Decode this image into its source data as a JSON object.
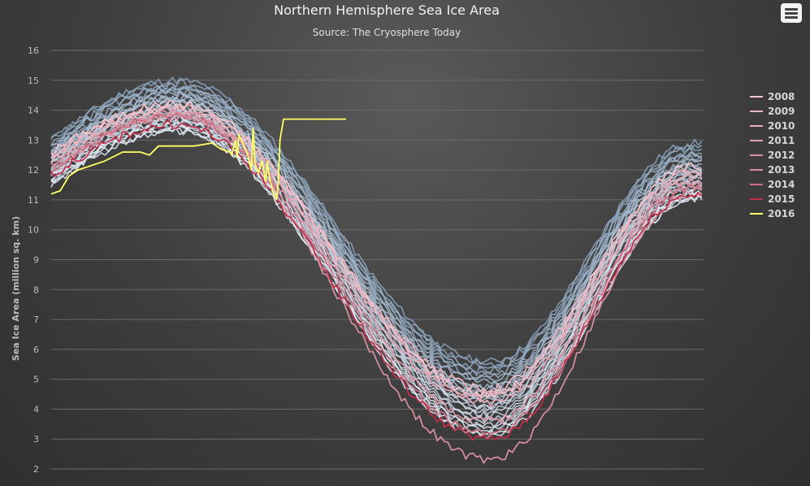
{
  "chart_data": {
    "type": "line",
    "title": "Northern Hemisphere Sea Ice Area",
    "subtitle": "Source: The Cryosphere Today",
    "ylabel": "Sea Ice Area (million sq. km)",
    "xlabel": "",
    "ylim": [
      2,
      16
    ],
    "yticks": [
      2,
      3,
      4,
      5,
      6,
      7,
      8,
      9,
      10,
      11,
      12,
      13,
      14,
      15,
      16
    ],
    "xlim": [
      0,
      365
    ],
    "grid": true,
    "legend_position": "right",
    "legend": [
      "2008",
      "2009",
      "2010",
      "2011",
      "2012",
      "2013",
      "2014",
      "2015",
      "2016"
    ],
    "background_series": {
      "description_count": 28,
      "start_values": [
        13.0,
        13.0,
        12.9,
        12.8,
        12.8,
        12.7,
        12.6,
        12.6,
        12.5,
        12.5,
        12.4,
        12.4,
        12.3,
        12.3,
        12.2,
        12.2,
        12.1,
        12.0,
        12.0,
        11.9,
        11.9,
        11.8,
        11.8,
        11.7,
        11.7,
        11.6,
        11.6,
        11.5
      ],
      "max_values": [
        15.0,
        14.9,
        14.8,
        14.8,
        14.7,
        14.6,
        14.6,
        14.5,
        14.4,
        14.4,
        14.3,
        14.3,
        14.2,
        14.1,
        14.1,
        14.0,
        14.0,
        13.9,
        13.8,
        13.8,
        13.7,
        13.6,
        13.6,
        13.5,
        13.5,
        13.4,
        13.3,
        13.3
      ],
      "min_values": [
        5.6,
        5.5,
        5.4,
        5.3,
        5.2,
        5.1,
        5.0,
        4.9,
        4.8,
        4.7,
        4.6,
        4.5,
        4.5,
        4.4,
        4.3,
        4.2,
        4.1,
        4.1,
        4.0,
        3.9,
        3.8,
        3.7,
        3.6,
        3.5,
        3.4,
        3.3,
        3.2,
        3.1
      ],
      "end_values": [
        12.9,
        12.8,
        12.7,
        12.6,
        12.5,
        12.5,
        12.4,
        12.3,
        12.3,
        12.2,
        12.1,
        12.0,
        12.0,
        11.9,
        11.8,
        11.8,
        11.7,
        11.6,
        11.6,
        11.5,
        11.4,
        11.4,
        11.3,
        11.2,
        11.2,
        11.1,
        11.0,
        11.0
      ]
    },
    "series": [
      {
        "name": "2008",
        "color": "#f4c6cf",
        "start": 12.6,
        "max": 14.2,
        "min": 4.5,
        "end": 12.1
      },
      {
        "name": "2009",
        "color": "#f0b7c3",
        "start": 12.5,
        "max": 14.1,
        "min": 4.7,
        "end": 12.0
      },
      {
        "name": "2010",
        "color": "#eab0bd",
        "start": 12.3,
        "max": 14.0,
        "min": 4.4,
        "end": 11.8
      },
      {
        "name": "2011",
        "color": "#e2a2b1",
        "start": 12.0,
        "max": 13.8,
        "min": 4.2,
        "end": 11.6
      },
      {
        "name": "2012",
        "color": "#d991a2",
        "start": 11.9,
        "max": 13.9,
        "min": 2.3,
        "end": 11.2
      },
      {
        "name": "2013",
        "color": "#d98f9f",
        "start": 12.1,
        "max": 13.9,
        "min": 3.6,
        "end": 11.5
      },
      {
        "name": "2014",
        "color": "#cc6f86",
        "start": 12.0,
        "max": 13.8,
        "min": 3.2,
        "end": 11.4
      },
      {
        "name": "2015",
        "color": "#c52d4a",
        "start": 11.8,
        "max": 13.5,
        "min": 3.0,
        "end": 11.2
      },
      {
        "name": "2016",
        "color": "#ffff66",
        "x": [
          0,
          5,
          10,
          15,
          20,
          30,
          40,
          50,
          55,
          60,
          70,
          80,
          90,
          95,
          100,
          101,
          103,
          104,
          105,
          110,
          112,
          113,
          114,
          116,
          118,
          120,
          121,
          122,
          124,
          126,
          127,
          128,
          130,
          131,
          132,
          133,
          134,
          135,
          150,
          165
        ],
        "y": [
          11.2,
          11.3,
          11.8,
          12.0,
          12.1,
          12.3,
          12.6,
          12.6,
          12.5,
          12.8,
          12.8,
          12.8,
          12.9,
          12.7,
          12.6,
          12.5,
          13.0,
          12.4,
          13.2,
          12.5,
          12.0,
          13.4,
          12.2,
          11.9,
          12.3,
          11.6,
          12.3,
          11.8,
          11.3,
          11.0,
          11.5,
          13.0,
          13.7,
          13.7,
          13.7,
          13.7,
          13.7,
          13.7,
          13.7,
          13.7
        ]
      }
    ]
  }
}
